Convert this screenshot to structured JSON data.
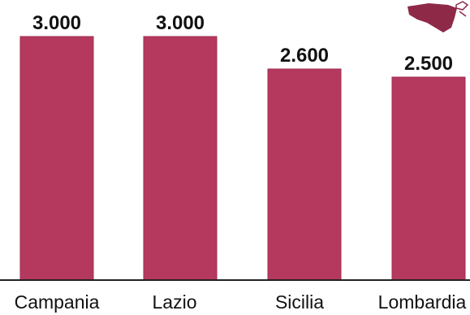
{
  "chart_data": {
    "type": "bar",
    "categories": [
      "Campania",
      "Lazio",
      "Sicilia",
      "Lombardia"
    ],
    "values": [
      3000,
      3000,
      2600,
      2500
    ],
    "value_labels": [
      "3.000",
      "3.000",
      "2.600",
      "2.500"
    ],
    "ylim": [
      0,
      3000
    ],
    "grid": false,
    "colors": {
      "bar": "#b5395e",
      "bar_edge": "#9e2d50",
      "axis": "#222222",
      "icon": "#8e2a48"
    },
    "icon": "sicily-map-icon"
  }
}
